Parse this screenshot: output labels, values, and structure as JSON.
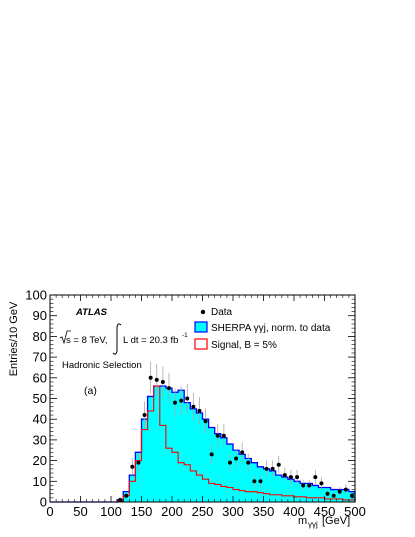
{
  "chart_data": {
    "type": "histogram",
    "title": "",
    "xlabel": "m",
    "xlabel_sub": "γγj",
    "xlabel_unit": "[GeV]",
    "ylabel": "Entries/10 GeV",
    "xlim": [
      0,
      500
    ],
    "ylim": [
      0,
      100
    ],
    "grid": false,
    "legend_position": "top-right",
    "x_ticks": [
      0,
      50,
      100,
      150,
      200,
      250,
      300,
      350,
      400,
      450,
      500
    ],
    "y_ticks": [
      0,
      10,
      20,
      30,
      40,
      50,
      60,
      70,
      80,
      90,
      100
    ],
    "bin_width": 10,
    "annotations": {
      "experiment": "ATLAS",
      "sqrt_s": "s =  8 TeV,",
      "lumi_prefix": "L dt = 20.3 fb",
      "lumi_exp": "-1",
      "selection": "Hadronic Selection",
      "panel": "(a)"
    },
    "legend": [
      {
        "label": "Data",
        "style": "marker"
      },
      {
        "label": "SHERPA γγj, norm. to data",
        "style": "fill",
        "color": "#0000ff",
        "fill": "#00ffff"
      },
      {
        "label": "Signal, B = 5%",
        "style": "line",
        "color": "#ff0000"
      }
    ],
    "series": [
      {
        "name": "SHERPA γγj, norm. to data",
        "bin_edges_start": [
          110,
          120,
          130,
          140,
          150,
          160,
          170,
          180,
          190,
          200,
          210,
          220,
          230,
          240,
          250,
          260,
          270,
          280,
          290,
          300,
          310,
          320,
          330,
          340,
          350,
          360,
          370,
          380,
          390,
          400,
          410,
          420,
          430,
          440,
          450,
          460,
          470,
          480,
          490
        ],
        "values": [
          1,
          5,
          13,
          24,
          40,
          51,
          56,
          56,
          55,
          53,
          54,
          48,
          45,
          43,
          40,
          36,
          33,
          31,
          28,
          25,
          23,
          21,
          19,
          17,
          16,
          15,
          13,
          12,
          11,
          10,
          9,
          9,
          8,
          7,
          7,
          6,
          6,
          6,
          5
        ]
      },
      {
        "name": "Signal, B = 5%",
        "bin_edges_start": [
          110,
          120,
          130,
          140,
          150,
          160,
          170,
          180,
          190,
          200,
          210,
          220,
          230,
          240,
          250,
          260,
          270,
          280,
          290,
          300,
          310,
          320,
          330,
          340,
          350,
          360,
          370,
          380,
          390,
          400,
          410,
          420,
          430,
          440,
          450,
          460,
          470,
          480,
          490
        ],
        "values": [
          0.5,
          3,
          10,
          20,
          35,
          44,
          56,
          37,
          26,
          24,
          19,
          18,
          15,
          13,
          11,
          9,
          8.5,
          7.5,
          7,
          6,
          5.5,
          5,
          5,
          4.5,
          4,
          3.5,
          3.5,
          3,
          3,
          2.5,
          2.5,
          2,
          2,
          2,
          1.5,
          1.5,
          1.5,
          1,
          1
        ]
      },
      {
        "name": "Data",
        "x": [
          115,
          125,
          135,
          145,
          155,
          165,
          175,
          185,
          195,
          205,
          215,
          225,
          235,
          245,
          255,
          265,
          275,
          285,
          295,
          305,
          315,
          325,
          335,
          345,
          355,
          365,
          375,
          385,
          395,
          405,
          415,
          425,
          435,
          445,
          455,
          465,
          475,
          485,
          495
        ],
        "y": [
          1,
          3,
          17,
          19,
          42,
          60,
          59,
          58,
          55,
          48,
          49,
          50,
          46,
          44,
          39,
          23,
          32,
          32,
          19,
          21,
          24,
          19,
          10,
          10,
          16,
          16,
          18,
          13,
          12,
          12,
          8,
          8,
          12,
          9,
          4,
          3,
          5,
          6,
          3
        ],
        "yerr": [
          1,
          1.7,
          4.1,
          4.4,
          6.5,
          7.7,
          7.7,
          7.6,
          7.4,
          6.9,
          7,
          7.1,
          6.8,
          6.6,
          6.2,
          4.8,
          5.7,
          5.7,
          4.4,
          4.6,
          4.9,
          4.4,
          3.2,
          3.2,
          4,
          4,
          4.2,
          3.6,
          3.5,
          3.5,
          2.8,
          2.8,
          3.5,
          3,
          2,
          1.7,
          2.2,
          2.4,
          1.7
        ]
      }
    ]
  }
}
